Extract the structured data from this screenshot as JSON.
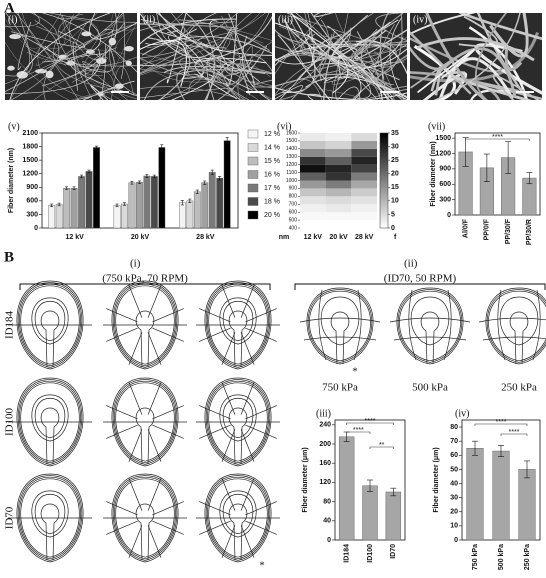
{
  "figure": {
    "panel_a": "A",
    "panel_b": "B"
  },
  "panel_a": {
    "images": [
      "(i)",
      "(ii)",
      "(iii)",
      "(iv)"
    ]
  },
  "panel_b": {
    "i": {
      "label": "(i)",
      "condition": "(750 kPa, 70 RPM)",
      "rows": [
        "ID184",
        "ID100",
        "ID70"
      ]
    },
    "ii": {
      "label": "(ii)",
      "condition": "(ID70, 50 RPM)",
      "columns": [
        "750 kPa",
        "500 kPa",
        "250 kPa"
      ]
    },
    "asterisks": [
      "*",
      "*"
    ]
  },
  "chart_data": [
    {
      "type": "bar",
      "panel": "(v)",
      "y_label": "Fiber diameter (nm)",
      "categories": [
        "12 kV",
        "20 kV",
        "28 kV"
      ],
      "series": [
        {
          "name": "12 %",
          "color": "#f4f4f4",
          "values": [
            500,
            500,
            560
          ],
          "errors": [
            30,
            30,
            50
          ]
        },
        {
          "name": "14 %",
          "color": "#d9d9d9",
          "values": [
            520,
            530,
            600
          ],
          "errors": [
            30,
            30,
            40
          ]
        },
        {
          "name": "15 %",
          "color": "#bdbdbd",
          "values": [
            880,
            1000,
            800
          ],
          "errors": [
            30,
            30,
            40
          ]
        },
        {
          "name": "16 %",
          "color": "#a0a0a0",
          "values": [
            880,
            1010,
            1000
          ],
          "errors": [
            30,
            30,
            40
          ]
        },
        {
          "name": "17 %",
          "color": "#7a7a7a",
          "values": [
            1140,
            1150,
            1230
          ],
          "errors": [
            30,
            30,
            50
          ]
        },
        {
          "name": "18 %",
          "color": "#4a4a4a",
          "values": [
            1250,
            1140,
            1100
          ],
          "errors": [
            30,
            30,
            40
          ]
        },
        {
          "name": "20 %",
          "color": "#000000",
          "values": [
            1780,
            1780,
            1930
          ],
          "errors": [
            30,
            60,
            70
          ]
        }
      ],
      "ylim": [
        0,
        2100
      ],
      "yticks": [
        0,
        300,
        600,
        900,
        1200,
        1500,
        1800,
        2100
      ]
    },
    {
      "type": "heatmap",
      "panel": "(vi)",
      "y_label": "nm",
      "colorbar_label": "f",
      "categories": [
        "12 kV",
        "20 kV",
        "28 kV"
      ],
      "values": [
        [
          0,
          1,
          2,
          4,
          8,
          14,
          22,
          33,
          28,
          16,
          8,
          3
        ],
        [
          0,
          1,
          3,
          5,
          10,
          18,
          28,
          30,
          22,
          14,
          6,
          2
        ],
        [
          0,
          1,
          2,
          4,
          7,
          12,
          18,
          26,
          30,
          25,
          14,
          5
        ]
      ],
      "ylim": [
        400,
        1600
      ],
      "yticks": [
        400,
        500,
        600,
        700,
        800,
        900,
        1000,
        1100,
        1200,
        1300,
        1400,
        1500,
        1600
      ],
      "clim": [
        0,
        35
      ],
      "cticks": [
        0,
        5,
        10,
        15,
        20,
        25,
        30,
        35
      ]
    },
    {
      "type": "bar",
      "panel": "(vii)",
      "y_label": "Fiber diameter (nm)",
      "categories": [
        "Al/0/F",
        "PP/0/F",
        "PP/30/F",
        "PP/30/R"
      ],
      "values": [
        1230,
        920,
        1120,
        720
      ],
      "errors": [
        280,
        270,
        310,
        110
      ],
      "color": "#a6a6a6",
      "ylim": [
        0,
        1600
      ],
      "yticks": [
        0,
        300,
        600,
        900,
        1200,
        1500
      ],
      "annotations": [
        "****"
      ]
    },
    {
      "type": "bar",
      "panel": "(iii)",
      "y_label": "Fiber diameter (μm)",
      "categories": [
        "ID184",
        "ID100",
        "ID70"
      ],
      "values": [
        215,
        113,
        100
      ],
      "errors": [
        10,
        12,
        8
      ],
      "color": "#a6a6a6",
      "ylim": [
        0,
        250
      ],
      "yticks": [
        0,
        40,
        80,
        120,
        160,
        200,
        240
      ],
      "annotations": [
        "****",
        "****",
        "**"
      ]
    },
    {
      "type": "bar",
      "panel": "(iv)",
      "y_label": "Fiber diameter (μm)",
      "categories": [
        "750 kPa",
        "500 kPa",
        "250 kPa"
      ],
      "values": [
        65,
        63,
        50
      ],
      "errors": [
        5,
        4,
        6
      ],
      "color": "#a6a6a6",
      "ylim": [
        0,
        85
      ],
      "yticks": [
        0,
        10,
        20,
        30,
        40,
        50,
        60,
        70,
        80
      ],
      "annotations": [
        "****",
        "****"
      ]
    }
  ]
}
